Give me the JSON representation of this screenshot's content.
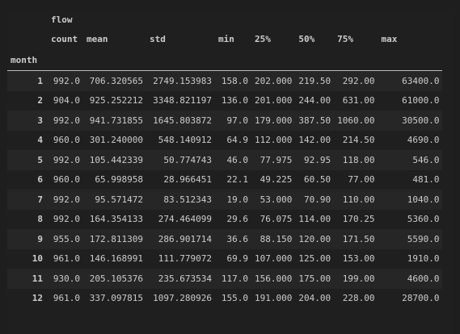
{
  "table": {
    "top_header": "flow",
    "columns": [
      "count",
      "mean",
      "std",
      "min",
      "25%",
      "50%",
      "75%",
      "max"
    ],
    "index_name": "month",
    "rows": [
      {
        "index": "1",
        "values": [
          "992.0",
          "706.320565",
          "2749.153983",
          "158.0",
          "202.000",
          "219.50",
          "292.00",
          "63400.0"
        ]
      },
      {
        "index": "2",
        "values": [
          "904.0",
          "925.252212",
          "3348.821197",
          "136.0",
          "201.000",
          "244.00",
          "631.00",
          "61000.0"
        ]
      },
      {
        "index": "3",
        "values": [
          "992.0",
          "941.731855",
          "1645.803872",
          "97.0",
          "179.000",
          "387.50",
          "1060.00",
          "30500.0"
        ]
      },
      {
        "index": "4",
        "values": [
          "960.0",
          "301.240000",
          "548.140912",
          "64.9",
          "112.000",
          "142.00",
          "214.50",
          "4690.0"
        ]
      },
      {
        "index": "5",
        "values": [
          "992.0",
          "105.442339",
          "50.774743",
          "46.0",
          "77.975",
          "92.95",
          "118.00",
          "546.0"
        ]
      },
      {
        "index": "6",
        "values": [
          "960.0",
          "65.998958",
          "28.966451",
          "22.1",
          "49.225",
          "60.50",
          "77.00",
          "481.0"
        ]
      },
      {
        "index": "7",
        "values": [
          "992.0",
          "95.571472",
          "83.512343",
          "19.0",
          "53.000",
          "70.90",
          "110.00",
          "1040.0"
        ]
      },
      {
        "index": "8",
        "values": [
          "992.0",
          "164.354133",
          "274.464099",
          "29.6",
          "76.075",
          "114.00",
          "170.25",
          "5360.0"
        ]
      },
      {
        "index": "9",
        "values": [
          "955.0",
          "172.811309",
          "286.901714",
          "36.6",
          "88.150",
          "120.00",
          "171.50",
          "5590.0"
        ]
      },
      {
        "index": "10",
        "values": [
          "961.0",
          "146.168991",
          "111.779072",
          "69.9",
          "107.000",
          "125.00",
          "153.00",
          "1910.0"
        ]
      },
      {
        "index": "11",
        "values": [
          "930.0",
          "205.105376",
          "235.673534",
          "117.0",
          "156.000",
          "175.00",
          "199.00",
          "4600.0"
        ]
      },
      {
        "index": "12",
        "values": [
          "961.0",
          "337.097815",
          "1097.280926",
          "155.0",
          "191.000",
          "204.00",
          "228.00",
          "28700.0"
        ]
      }
    ]
  }
}
